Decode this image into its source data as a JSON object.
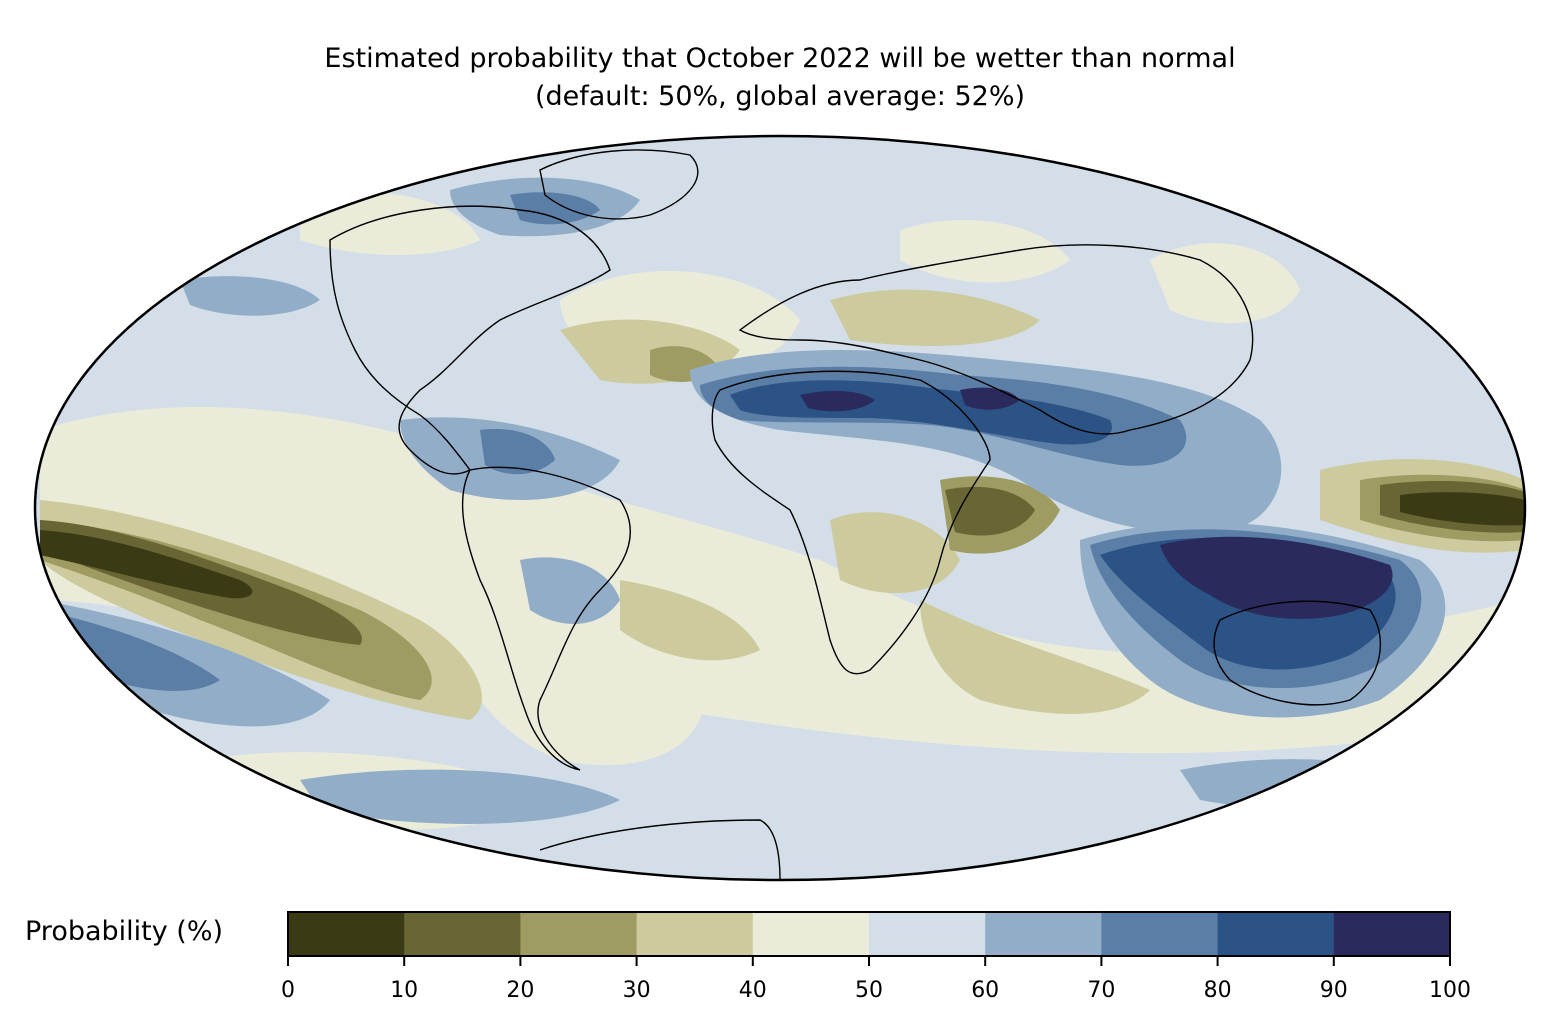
{
  "title": {
    "line1": "Estimated probability that October 2022 will be wetter than normal",
    "line2": "(default: 50%, global average: 52%)"
  },
  "colorbar": {
    "label": "Probability (%)",
    "ticks": [
      "0",
      "10",
      "20",
      "30",
      "40",
      "50",
      "60",
      "70",
      "80",
      "90",
      "100"
    ],
    "colors": [
      "#3a3a14",
      "#676634",
      "#9e9c62",
      "#cdcb9d",
      "#ebebd9",
      "#d3dee9",
      "#91adc8",
      "#5a7ea6",
      "#2c5385",
      "#2a2a5c"
    ]
  },
  "map": {
    "projection": "Mollweide",
    "ocean_base_color": "#d3dee9",
    "regions": [
      {
        "name": "central-pacific-dry-band",
        "class": "10-20"
      },
      {
        "name": "central-pacific-core",
        "class": "0-10"
      },
      {
        "name": "western-pacific-dry-core",
        "class": "0-10"
      },
      {
        "name": "maritime-continent-wet",
        "class": "90-100"
      },
      {
        "name": "north-africa-arabia-wet",
        "class": "80-90"
      },
      {
        "name": "east-africa-dry",
        "class": "10-20"
      },
      {
        "name": "australia-wet",
        "class": "80-90"
      }
    ]
  }
}
